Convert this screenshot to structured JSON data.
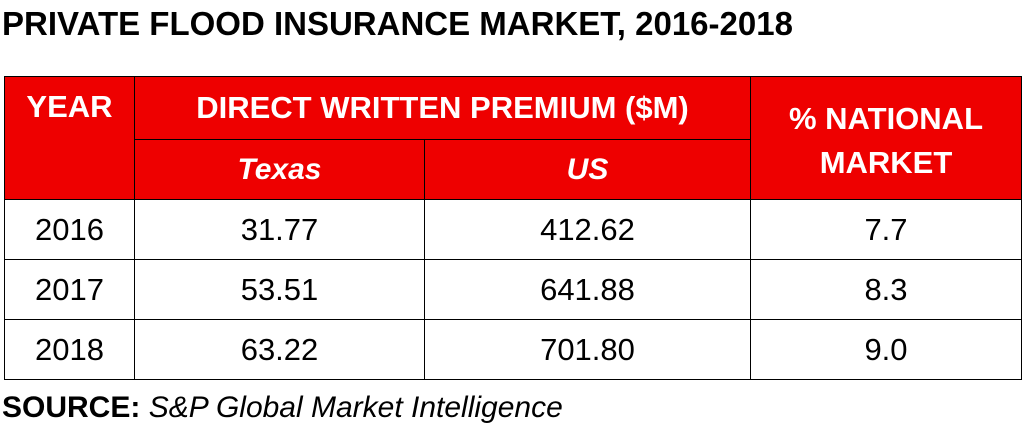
{
  "title": "PRIVATE FLOOD INSURANCE MARKET, 2016-2018",
  "table": {
    "header": {
      "year": "YEAR",
      "premium_group": "DIRECT WRITTEN PREMIUM ($M)",
      "texas": "Texas",
      "us": "US",
      "pct_line1": "% NATIONAL",
      "pct_line2": "MARKET"
    },
    "rows": [
      {
        "year": "2016",
        "texas": "31.77",
        "us": "412.62",
        "pct": "7.7"
      },
      {
        "year": "2017",
        "texas": "53.51",
        "us": "641.88",
        "pct": "8.3"
      },
      {
        "year": "2018",
        "texas": "63.22",
        "us": "701.80",
        "pct": "9.0"
      }
    ],
    "header_color": "#ee0000"
  },
  "source": {
    "label": "SOURCE:",
    "text": "S&P Global Market Intelligence"
  }
}
